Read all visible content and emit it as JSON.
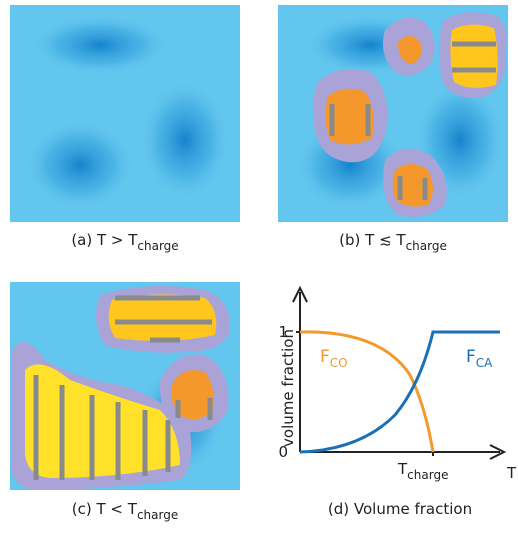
{
  "panels": [
    {
      "caption": {
        "main": "(a)  T >  T",
        "sub": "charge"
      }
    },
    {
      "caption": {
        "main": "(b)  T ≲ T",
        "sub": "charge"
      }
    },
    {
      "caption": {
        "main": "(c)  T < T",
        "sub": "charge"
      }
    },
    {
      "caption": {
        "main": "(d)  Volume fraction"
      },
      "plot": {
        "y_label": "volume fraction",
        "y_tick_top": "1",
        "y_tick_bottom": "0",
        "x_label": "T",
        "x_tick": {
          "main": "T",
          "sub": "charge"
        },
        "curve_co": {
          "main": "F",
          "sub": "CO"
        },
        "curve_ca": {
          "main": "F",
          "sub": "CA"
        }
      }
    }
  ]
}
